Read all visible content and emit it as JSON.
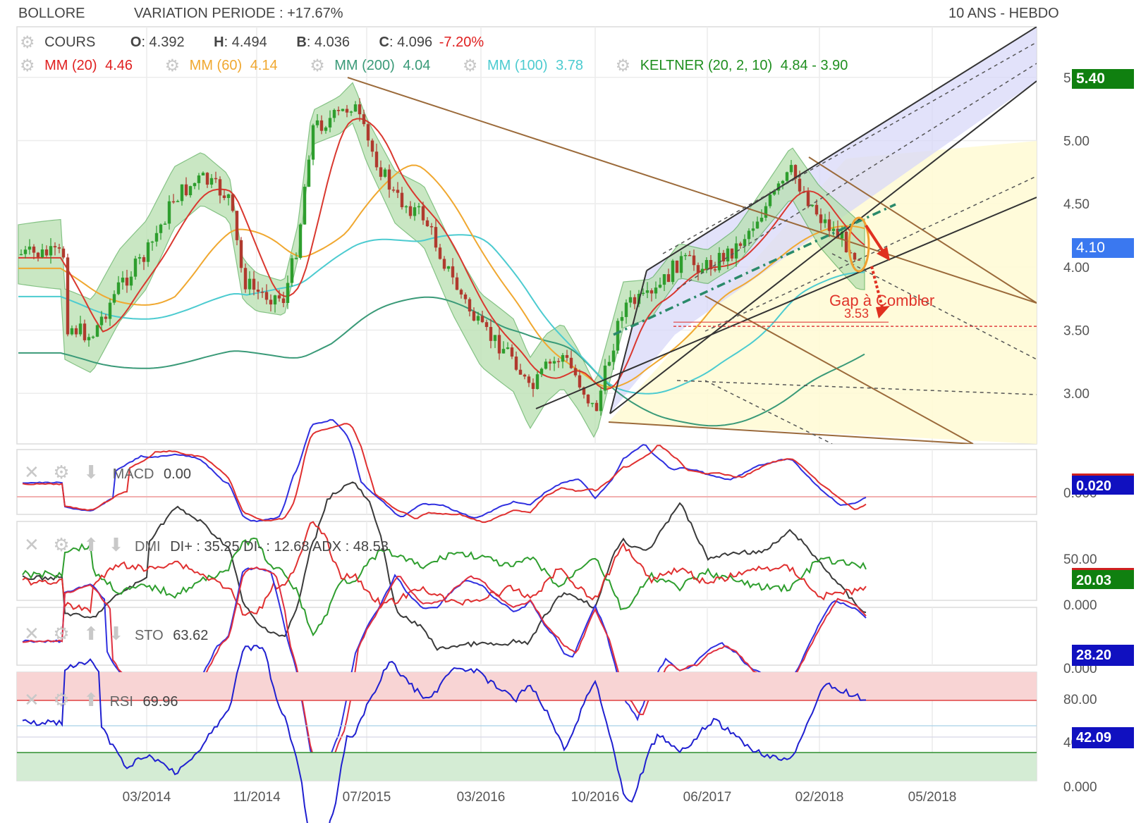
{
  "header": {
    "symbol": "BOLLORE",
    "variation": "VARIATION PERIODE : +17.67%",
    "range": "10 ANS - HEBDO"
  },
  "legend": {
    "cours_label": "COURS",
    "o_key": "O",
    "o_val": ": 4.392",
    "h_key": "H",
    "h_val": ": 4.494",
    "b_key": "B",
    "b_val": ": 4.036",
    "c_key": "C",
    "c_val": ": 4.096",
    "c_change": "-7.20%",
    "mm20": "MM (20)",
    "mm20_val": "4.46",
    "mm60": "MM (60)",
    "mm60_val": "4.14",
    "mm200": "MM (200)",
    "mm200_val": "4.04",
    "mm100": "MM (100)",
    "mm100_val": "3.78",
    "keltner": "KELTNER (20, 2, 10)",
    "keltner_val": "4.84 - 3.90"
  },
  "annotations": {
    "gap": "Gap à Combler",
    "gap_value": "3.53"
  },
  "price_badges": {
    "top": "5.40",
    "current": "4.10"
  },
  "indicators": {
    "macd": {
      "label": "MACD",
      "value": "0.00",
      "badge": "0.020",
      "ticks": [
        "0.000"
      ]
    },
    "dmi": {
      "label": "DMI",
      "value": "DI+ : 35.25 DI- : 12.68 ADX : 48.53",
      "badge": "20.03",
      "ticks": [
        "50.00",
        "0.000"
      ]
    },
    "sto": {
      "label": "STO",
      "value": "63.62",
      "badge": "28.20",
      "ticks": [
        "0.000"
      ]
    },
    "rsi": {
      "label": "RSI",
      "value": "69.96",
      "badge": "42.09",
      "ticks": [
        "80.00",
        "40.00",
        "0.000"
      ]
    }
  },
  "colors": {
    "bull": "#2e9e2e",
    "bear": "#b03a2e",
    "mm20": "#d9382f",
    "mm60": "#f0a830",
    "mm200": "#3a9a78",
    "mm100": "#4ccbd0",
    "keltner": "#1f8f1f",
    "badge_green": "#108010",
    "badge_blue": "#1010c0"
  },
  "chart_data": {
    "type": "candlestick",
    "x_ticks": [
      "03/2014",
      "11/2014",
      "07/2015",
      "03/2016",
      "10/2016",
      "06/2017",
      "02/2018",
      "05/2018"
    ],
    "y_ticks": [
      "5.50",
      "5.00",
      "4.50",
      "4.00",
      "3.50",
      "3.00"
    ],
    "ylim": [
      2.6,
      5.9
    ],
    "close_path": [
      [
        "2013-09",
        3.55
      ],
      [
        "2013-11",
        3.45
      ],
      [
        "2014-01",
        3.85
      ],
      [
        "2014-03",
        4.1
      ],
      [
        "2014-05",
        4.55
      ],
      [
        "2014-07",
        4.7
      ],
      [
        "2014-09",
        4.55
      ],
      [
        "2014-10",
        3.9
      ],
      [
        "2014-11",
        3.8
      ],
      [
        "2015-01",
        3.75
      ],
      [
        "2015-02",
        4.2
      ],
      [
        "2015-03",
        5.1
      ],
      [
        "2015-05",
        5.2
      ],
      [
        "2015-06",
        5.3
      ],
      [
        "2015-07",
        5.0
      ],
      [
        "2015-09",
        4.55
      ],
      [
        "2015-11",
        4.4
      ],
      [
        "2016-01",
        3.9
      ],
      [
        "2016-03",
        3.5
      ],
      [
        "2016-05",
        3.3
      ],
      [
        "2016-06",
        3.0
      ],
      [
        "2016-07",
        3.2
      ],
      [
        "2016-08",
        3.3
      ],
      [
        "2016-09",
        3.1
      ],
      [
        "2016-10",
        2.85
      ],
      [
        "2016-12",
        3.7
      ],
      [
        "2017-02",
        3.75
      ],
      [
        "2017-04",
        4.05
      ],
      [
        "2017-06",
        4.0
      ],
      [
        "2017-08",
        4.15
      ],
      [
        "2017-10",
        4.45
      ],
      [
        "2017-12",
        4.75
      ],
      [
        "2018-02",
        4.4
      ],
      [
        "2018-03",
        4.1
      ]
    ],
    "moving_averages": {
      "MM (20)": 4.46,
      "MM (60)": 4.14,
      "MM (200)": 4.04,
      "MM (100)": 3.78
    },
    "keltner": [
      4.84,
      3.9
    ],
    "ohlc_last": {
      "open": 4.392,
      "high": 4.494,
      "low": 4.036,
      "close": 4.096
    },
    "gap_level": 3.53,
    "panels": {
      "MACD": 0.0,
      "DMI": {
        "DI+": 35.25,
        "DI-": 12.68,
        "ADX": 48.53
      },
      "STO": 63.62,
      "RSI": 69.96
    }
  }
}
